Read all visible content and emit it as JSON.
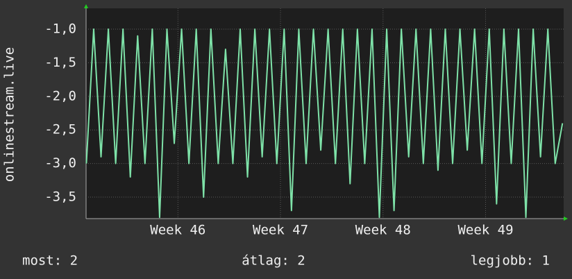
{
  "chart_data": {
    "type": "line",
    "y_label": "onlinestream.live",
    "x": [
      0.75,
      1.25,
      1.75,
      2.25,
      2.75,
      3.25,
      3.75,
      4.25,
      4.75,
      5.25,
      5.75,
      6.25,
      6.75,
      7.25,
      7.75,
      8.25,
      8.75,
      9.25,
      9.75,
      10.25,
      10.75,
      11.25,
      11.75,
      12.25,
      12.75,
      13.25,
      13.75,
      14.25,
      14.75,
      15.25,
      15.75,
      16.25,
      16.75,
      17.25,
      17.75,
      18.25,
      18.75,
      19.25,
      19.75,
      20.25,
      20.75,
      21.25,
      21.75,
      22.25,
      22.75,
      23.25,
      23.75,
      24.25,
      24.75,
      25.25,
      25.75,
      26.25,
      26.75,
      27.25,
      27.75,
      28.25,
      28.75,
      29.25,
      29.75,
      30.25,
      30.75,
      31.25,
      31.75,
      32.25,
      32.75,
      33.25
    ],
    "series": [
      {
        "color": "#7ee2a8",
        "values": [
          -3.0,
          -1.0,
          -2.9,
          -1.0,
          -3.0,
          -1.0,
          -3.2,
          -1.1,
          -3.0,
          -1.0,
          -3.8,
          -1.0,
          -2.7,
          -1.0,
          -3.0,
          -1.0,
          -3.5,
          -1.0,
          -3.0,
          -1.3,
          -3.0,
          -1.0,
          -3.2,
          -1.0,
          -2.9,
          -1.0,
          -3.0,
          -1.0,
          -3.7,
          -1.0,
          -3.0,
          -1.0,
          -2.8,
          -1.0,
          -3.0,
          -1.0,
          -3.3,
          -1.0,
          -3.0,
          -1.0,
          -3.8,
          -1.0,
          -3.7,
          -1.0,
          -2.9,
          -1.0,
          -3.0,
          -1.0,
          -3.1,
          -1.0,
          -3.0,
          -1.0,
          -2.8,
          -1.0,
          -3.0,
          -1.0,
          -3.6,
          -1.0,
          -3.0,
          -1.0,
          -3.8,
          -1.0,
          -2.9,
          -1.0,
          -3.0,
          -2.4
        ]
      }
    ],
    "xlim": [
      0.73,
      33.33
    ],
    "xticks": [
      {
        "value": 7,
        "label": "Week 46"
      },
      {
        "value": 14,
        "label": "Week 47"
      },
      {
        "value": 21,
        "label": "Week 48"
      },
      {
        "value": 28,
        "label": "Week 49"
      }
    ],
    "ylim": [
      -3.82,
      -0.69
    ],
    "yticks": [
      {
        "value": -1,
        "label": "-1,0"
      },
      {
        "value": -1.5,
        "label": "-1,5"
      },
      {
        "value": -2,
        "label": "-2,0"
      },
      {
        "value": -2.5,
        "label": "-2,5"
      },
      {
        "value": -3,
        "label": "-3,0"
      },
      {
        "value": -3.5,
        "label": "-3,5"
      }
    ],
    "grid": true,
    "footer": [
      "most: 2",
      "átlag: 2",
      "legjobb: 1"
    ]
  }
}
